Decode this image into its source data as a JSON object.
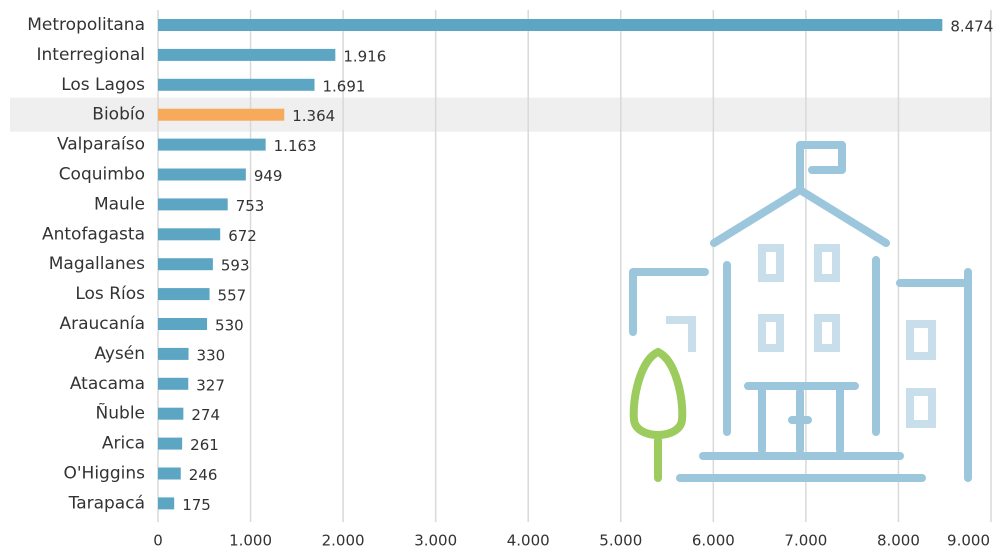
{
  "chart_data": {
    "type": "bar",
    "orientation": "horizontal",
    "categories": [
      "Metropolitana",
      "Interregional",
      "Los Lagos",
      "Biobío",
      "Valparaíso",
      "Coquimbo",
      "Maule",
      "Antofagasta",
      "Magallanes",
      "Los Ríos",
      "Araucanía",
      "Aysén",
      "Atacama",
      "Ñuble",
      "Arica",
      "O'Higgins",
      "Tarapacá"
    ],
    "values": [
      8474,
      1916,
      1691,
      1364,
      1163,
      949,
      753,
      672,
      593,
      557,
      530,
      330,
      327,
      274,
      261,
      246,
      175
    ],
    "value_labels": [
      "8.474",
      "1.916",
      "1.691",
      "1.364",
      "1.163",
      "949",
      "753",
      "672",
      "593",
      "557",
      "530",
      "330",
      "327",
      "274",
      "261",
      "246",
      "175"
    ],
    "colors": [
      "#5ca6c4",
      "#5ca6c4",
      "#5ca6c4",
      "#f7a95c",
      "#5ca6c4",
      "#5ca6c4",
      "#5ca6c4",
      "#5ca6c4",
      "#5ca6c4",
      "#5ca6c4",
      "#5ca6c4",
      "#5ca6c4",
      "#5ca6c4",
      "#5ca6c4",
      "#5ca6c4",
      "#5ca6c4",
      "#5ca6c4"
    ],
    "highlight_color": "#f7a95c",
    "xlim": [
      0,
      9000
    ],
    "xticks": [
      0,
      {
        "value": 1000,
        "label": "1.000"
      },
      {
        "value": 2000,
        "label": "2.000"
      },
      {
        "value": 3000,
        "label": "3.000"
      },
      {
        "value": 4000,
        "label": "4.000"
      },
      {
        "value": 5000,
        "label": "5.000"
      },
      {
        "value": 6000,
        "label": "6.000"
      },
      {
        "value": 7000,
        "label": "7.000"
      },
      {
        "value": 8000,
        "label": "8.000"
      },
      {
        "value": 9000,
        "label": "9.000"
      }
    ],
    "grid": true
  }
}
